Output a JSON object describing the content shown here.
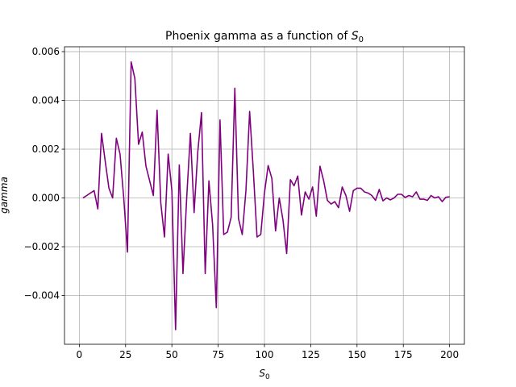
{
  "chart_data": {
    "type": "line",
    "title": "Phoenix gamma as a function of S0",
    "title_prefix": "Phoenix gamma as a function of ",
    "xlabel": "S0",
    "xlabel_main": "S",
    "xlabel_sub": "0",
    "ylabel": "gamma",
    "xlim": [
      -8,
      208
    ],
    "ylim": [
      -0.006,
      0.0062
    ],
    "xticks": [
      0,
      25,
      50,
      75,
      100,
      125,
      150,
      175,
      200
    ],
    "xtick_labels": [
      "0",
      "25",
      "50",
      "75",
      "100",
      "125",
      "150",
      "175",
      "200"
    ],
    "yticks": [
      -0.004,
      -0.002,
      0.0,
      0.002,
      0.004,
      0.006
    ],
    "ytick_labels": [
      "−0.004",
      "−0.002",
      "0.000",
      "0.002",
      "0.004",
      "0.006"
    ],
    "grid": true,
    "series": [
      {
        "color": "#800080",
        "x": [
          2,
          4,
          6,
          8,
          10,
          12,
          14,
          16,
          18,
          20,
          22,
          24,
          26,
          28,
          30,
          32,
          34,
          36,
          38,
          40,
          42,
          44,
          46,
          48,
          50,
          52,
          54,
          56,
          58,
          60,
          62,
          64,
          66,
          68,
          70,
          72,
          74,
          76,
          78,
          80,
          82,
          84,
          86,
          88,
          90,
          92,
          94,
          96,
          98,
          100,
          102,
          104,
          106,
          108,
          110,
          112,
          114,
          116,
          118,
          120,
          122,
          124,
          126,
          128,
          130,
          132,
          134,
          136,
          138,
          140,
          142,
          144,
          146,
          148,
          150,
          152,
          154,
          156,
          158,
          160,
          162,
          164,
          166,
          168,
          170,
          172,
          174,
          176,
          178,
          180,
          182,
          184,
          186,
          188,
          190,
          192,
          194,
          196,
          198,
          200
        ],
        "y": [
          0.0,
          0.0001,
          0.0002,
          0.0003,
          -0.00045,
          0.00265,
          0.0015,
          0.0004,
          0.0,
          0.00245,
          0.0018,
          0.0,
          -0.00222,
          0.00558,
          0.0049,
          0.0022,
          0.0027,
          0.0013,
          0.0007,
          0.0001,
          0.0036,
          -0.0002,
          -0.0016,
          0.0018,
          0.0003,
          -0.0054,
          0.00135,
          -0.0031,
          0.0,
          0.00265,
          -0.0006,
          0.0019,
          0.0035,
          -0.0031,
          0.0007,
          -0.0011,
          -0.0045,
          0.0032,
          -0.0015,
          -0.0014,
          -0.0008,
          0.0045,
          -0.00085,
          -0.0015,
          0.0003,
          0.00355,
          0.0011,
          -0.0016,
          -0.0015,
          0.0002,
          0.00133,
          0.0008,
          -0.00135,
          0.0,
          -0.0009,
          -0.00228,
          0.00075,
          0.0005,
          0.0009,
          -0.0007,
          0.00025,
          -5e-05,
          0.00045,
          -0.00075,
          0.0013,
          0.0007,
          -0.0001,
          -0.00025,
          -0.00015,
          -0.0004,
          0.00045,
          0.0001,
          -0.00055,
          0.0003,
          0.0004,
          0.0004,
          0.00025,
          0.0002,
          0.0001,
          -0.0001,
          0.00035,
          -0.00012,
          0.0,
          -8e-05,
          0.0,
          0.00015,
          0.00015,
          2e-05,
          0.0001,
          5e-05,
          0.00025,
          -5e-05,
          -5e-05,
          -0.0001,
          0.0001,
          0.0,
          5e-05,
          -0.00015,
          3e-05,
          5e-05
        ]
      }
    ]
  }
}
